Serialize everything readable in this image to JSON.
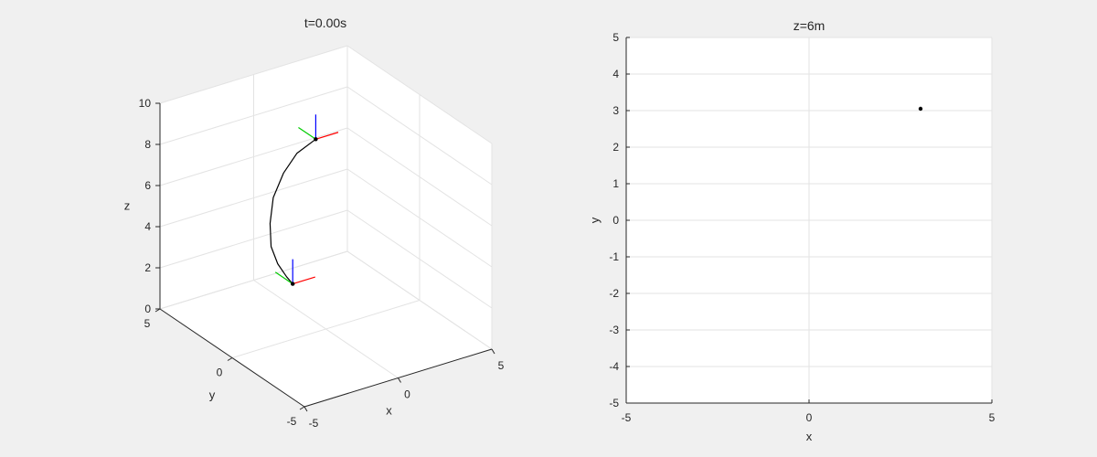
{
  "chart_data": [
    {
      "type": "line3d",
      "title": "t=0.00s",
      "xlabel": "x",
      "ylabel": "y",
      "zlabel": "z",
      "xlim": [
        -5,
        5
      ],
      "ylim": [
        -5,
        5
      ],
      "zlim": [
        0,
        10
      ],
      "xticks": [
        -5,
        0,
        5
      ],
      "yticks": [
        -5,
        0,
        5
      ],
      "zticks": [
        0,
        2,
        4,
        6,
        8,
        10
      ],
      "grid": true,
      "trajectory": {
        "color": "#000000",
        "start": [
          -1,
          1,
          2
        ],
        "end": [
          1,
          2,
          8
        ],
        "points": [
          [
            -1.0,
            1.0,
            2.0
          ],
          [
            -1.4,
            0.9,
            2.5
          ],
          [
            -1.8,
            1.0,
            3.2
          ],
          [
            -2.0,
            1.2,
            4.0
          ],
          [
            -1.9,
            1.4,
            5.0
          ],
          [
            -1.5,
            1.7,
            6.0
          ],
          [
            -0.8,
            1.9,
            6.9
          ],
          [
            0.0,
            2.0,
            7.6
          ],
          [
            1.0,
            2.0,
            8.0
          ]
        ]
      },
      "frame_axes": {
        "x_color": "#ff0000",
        "y_color": "#00cc00",
        "z_color": "#0000ff",
        "length": 1.2
      }
    },
    {
      "type": "scatter",
      "title": "z=6m",
      "xlabel": "x",
      "ylabel": "y",
      "xlim": [
        -5,
        5
      ],
      "ylim": [
        -5,
        5
      ],
      "xticks": [
        -5,
        0,
        5
      ],
      "yticks": [
        -5,
        -4,
        -3,
        -2,
        -1,
        0,
        1,
        2,
        3,
        4,
        5
      ],
      "grid": true,
      "points": [
        {
          "x": 3.05,
          "y": 3.05
        }
      ]
    }
  ]
}
